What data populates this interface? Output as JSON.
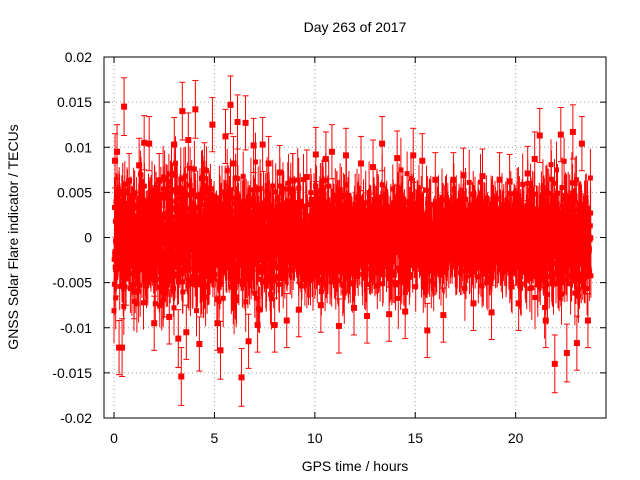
{
  "chart_data": {
    "type": "scatter",
    "title": "Day 263 of 2017",
    "xlabel": "GPS time / hours",
    "ylabel": "GNSS Solar Flare indicator / TECUs",
    "xlim": [
      -0.5,
      24.5
    ],
    "ylim": [
      -0.02,
      0.02
    ],
    "x_ticks": [
      0,
      5,
      10,
      15,
      20
    ],
    "x_tick_labels": [
      "0",
      "5",
      "10",
      "15",
      "20"
    ],
    "y_ticks": [
      -0.02,
      -0.015,
      -0.01,
      -0.005,
      0,
      0.005,
      0.01,
      0.015,
      0.02
    ],
    "y_tick_labels": [
      "-0.02",
      "-0.015",
      "-0.01",
      "-0.005",
      "0",
      "0.005",
      "0.01",
      "0.015",
      "0.02"
    ],
    "grid": true,
    "legend": "none",
    "series_color": "#ff0000",
    "error_bars": true,
    "x_range": [
      0,
      23.75
    ],
    "y_band_typical": [
      -0.005,
      0.005
    ],
    "approx_point_count": 2880,
    "series": [
      {
        "points": [
          [
            0.05,
            0.0085,
            0.003
          ],
          [
            0.1,
            -0.0035,
            0.003
          ],
          [
            0.15,
            0.0095,
            0.003
          ],
          [
            0.25,
            -0.0122,
            0.003
          ],
          [
            0.4,
            -0.0122,
            0.0032
          ],
          [
            0.5,
            0.0145,
            0.0032
          ],
          [
            0.6,
            -0.0045,
            0.003
          ],
          [
            0.75,
            0.0063,
            0.003
          ],
          [
            1.0,
            -0.006,
            0.003
          ],
          [
            1.25,
            0.008,
            0.003
          ],
          [
            1.5,
            0.0105,
            0.003
          ],
          [
            1.75,
            0.0104,
            0.003
          ],
          [
            2.0,
            -0.0095,
            0.003
          ],
          [
            2.25,
            0.0063,
            0.003
          ],
          [
            2.5,
            -0.0058,
            0.003
          ],
          [
            2.75,
            -0.0088,
            0.003
          ],
          [
            3.0,
            0.0103,
            0.003
          ],
          [
            3.2,
            -0.0112,
            0.0032
          ],
          [
            3.35,
            -0.0154,
            0.0032
          ],
          [
            3.4,
            0.014,
            0.0032
          ],
          [
            3.6,
            -0.0105,
            0.003
          ],
          [
            3.7,
            0.0108,
            0.003
          ],
          [
            4.05,
            0.0142,
            0.0032
          ],
          [
            4.25,
            -0.0118,
            0.003
          ],
          [
            4.5,
            0.0075,
            0.003
          ],
          [
            4.9,
            0.0125,
            0.003
          ],
          [
            5.15,
            -0.0095,
            0.003
          ],
          [
            5.3,
            -0.0125,
            0.0032
          ],
          [
            5.55,
            0.0112,
            0.003
          ],
          [
            5.8,
            0.0147,
            0.0032
          ],
          [
            5.95,
            0.0082,
            0.003
          ],
          [
            6.15,
            0.0128,
            0.003
          ],
          [
            6.35,
            -0.0155,
            0.0032
          ],
          [
            6.55,
            0.0127,
            0.003
          ],
          [
            6.7,
            -0.0115,
            0.003
          ],
          [
            6.95,
            0.0102,
            0.003
          ],
          [
            7.15,
            -0.0097,
            0.003
          ],
          [
            7.4,
            0.0103,
            0.003
          ],
          [
            7.7,
            0.0082,
            0.003
          ],
          [
            8.0,
            -0.0097,
            0.003
          ],
          [
            8.25,
            0.0072,
            0.003
          ],
          [
            8.6,
            -0.0092,
            0.003
          ],
          [
            8.9,
            0.0063,
            0.003
          ],
          [
            9.2,
            -0.008,
            0.003
          ],
          [
            9.6,
            0.0067,
            0.003
          ],
          [
            10.05,
            0.0092,
            0.003
          ],
          [
            10.3,
            -0.0075,
            0.003
          ],
          [
            10.55,
            0.0087,
            0.003
          ],
          [
            10.85,
            0.0095,
            0.003
          ],
          [
            11.2,
            -0.0098,
            0.003
          ],
          [
            11.55,
            0.0091,
            0.003
          ],
          [
            11.95,
            -0.0078,
            0.003
          ],
          [
            12.3,
            0.0082,
            0.003
          ],
          [
            12.6,
            -0.0087,
            0.003
          ],
          [
            12.9,
            0.0078,
            0.003
          ],
          [
            13.35,
            0.0104,
            0.003
          ],
          [
            13.7,
            -0.0085,
            0.003
          ],
          [
            14.1,
            0.0088,
            0.003
          ],
          [
            14.5,
            -0.0082,
            0.003
          ],
          [
            14.9,
            0.0091,
            0.003
          ],
          [
            15.35,
            0.0085,
            0.003
          ],
          [
            15.6,
            -0.0103,
            0.003
          ],
          [
            16.0,
            0.0064,
            0.003
          ],
          [
            16.4,
            -0.0086,
            0.003
          ],
          [
            16.9,
            0.0064,
            0.003
          ],
          [
            17.4,
            0.0069,
            0.003
          ],
          [
            17.9,
            -0.0073,
            0.003
          ],
          [
            18.35,
            0.0068,
            0.003
          ],
          [
            18.8,
            -0.0083,
            0.003
          ],
          [
            19.2,
            0.0064,
            0.003
          ],
          [
            19.7,
            0.0062,
            0.003
          ],
          [
            20.15,
            -0.0073,
            0.003
          ],
          [
            20.6,
            0.0071,
            0.003
          ],
          [
            20.95,
            0.0087,
            0.003
          ],
          [
            21.2,
            0.0113,
            0.003
          ],
          [
            21.5,
            -0.0092,
            0.003
          ],
          [
            21.95,
            -0.014,
            0.0032
          ],
          [
            22.25,
            0.0114,
            0.003
          ],
          [
            22.55,
            -0.0128,
            0.0032
          ],
          [
            22.85,
            0.0117,
            0.003
          ],
          [
            23.05,
            -0.0117,
            0.003
          ],
          [
            23.3,
            0.0104,
            0.003
          ],
          [
            23.6,
            -0.0092,
            0.003
          ]
        ]
      }
    ]
  }
}
